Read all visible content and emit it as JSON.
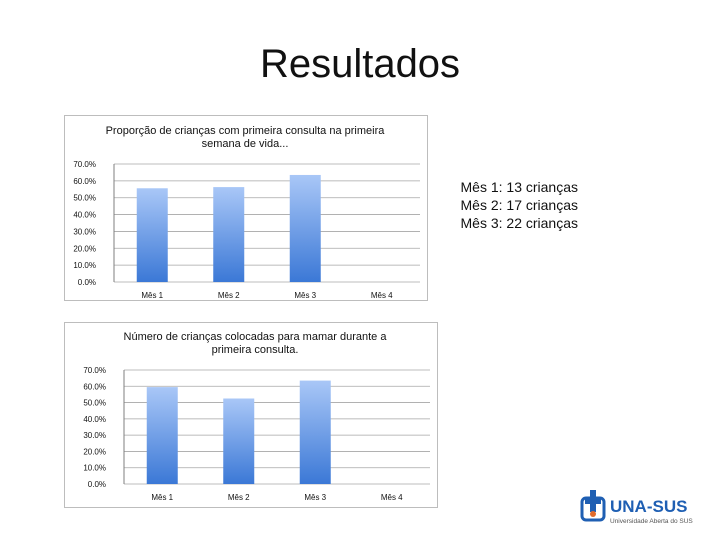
{
  "slide": {
    "title": "Resultados",
    "notes": [
      "Mês 1: 13 crianças",
      "Mês 2: 17 crianças",
      "Mês 3: 22 crianças"
    ],
    "logo_text": "UNA-SUS",
    "logo_subtext": "Universidade Aberta do SUS"
  },
  "chart_data": [
    {
      "type": "bar",
      "title": "Proporção de crianças com primeira consulta na primeira semana de vida...",
      "categories": [
        "Mês 1",
        "Mês 2",
        "Mês 3",
        "Mês 4"
      ],
      "values": [
        55.6,
        56.3,
        63.5,
        0
      ],
      "yticks": [
        "0.0%",
        "10.0%",
        "20.0%",
        "30.0%",
        "40.0%",
        "50.0%",
        "60.0%",
        "70.0%"
      ],
      "ylim": [
        0,
        70
      ],
      "grid": true,
      "bar_color_top": "#a9c7f7",
      "bar_color_bottom": "#3b78d6"
    },
    {
      "type": "bar",
      "title": "Número de crianças colocadas para mamar durante a primeira consulta.",
      "categories": [
        "Mês 1",
        "Mês 2",
        "Mês 3",
        "Mês 4"
      ],
      "values": [
        59.5,
        52.5,
        63.5,
        0
      ],
      "yticks": [
        "0.0%",
        "10.0%",
        "20.0%",
        "30.0%",
        "40.0%",
        "50.0%",
        "60.0%",
        "70.0%"
      ],
      "ylim": [
        0,
        70
      ],
      "grid": true,
      "bar_color_top": "#a9c7f7",
      "bar_color_bottom": "#3b78d6"
    }
  ]
}
